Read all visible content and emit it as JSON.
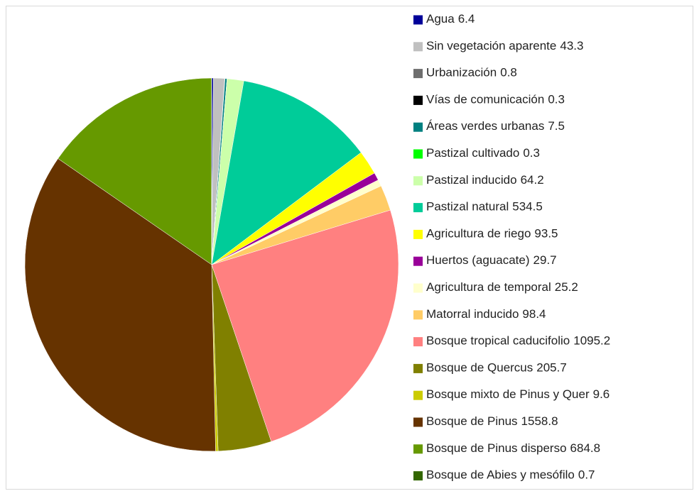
{
  "chart_data": {
    "type": "pie",
    "categories": [
      "Agua",
      "Sin vegetación aparente",
      "Urbanización",
      "Vías de comunicación",
      "Áreas verdes urbanas",
      "Pastizal cultivado",
      "Pastizal inducido",
      "Pastizal natural",
      "Agricultura de riego",
      "Huertos (aguacate)",
      "Agricultura de temporal",
      "Matorral inducido",
      "Bosque tropical caducifolio",
      "Bosque de Quercus",
      "Bosque mixto de Pinus y Quer",
      "Bosque de Pinus",
      "Bosque de Pinus disperso",
      "Bosque de Abies y mesófilo"
    ],
    "values": [
      6.4,
      43.3,
      0.8,
      0.3,
      7.5,
      0.3,
      64.2,
      534.5,
      93.5,
      29.7,
      25.2,
      98.4,
      1095.2,
      205.7,
      9.6,
      1558.8,
      684.8,
      0.7
    ],
    "colors": [
      "#000099",
      "#c0c0c0",
      "#6e6e6e",
      "#000000",
      "#008080",
      "#00ff00",
      "#ccffaa",
      "#00cc99",
      "#ffff00",
      "#990099",
      "#ffffcc",
      "#ffcc66",
      "#ff8080",
      "#808000",
      "#cccc00",
      "#663300",
      "#669900",
      "#336600"
    ],
    "legend": "right"
  }
}
